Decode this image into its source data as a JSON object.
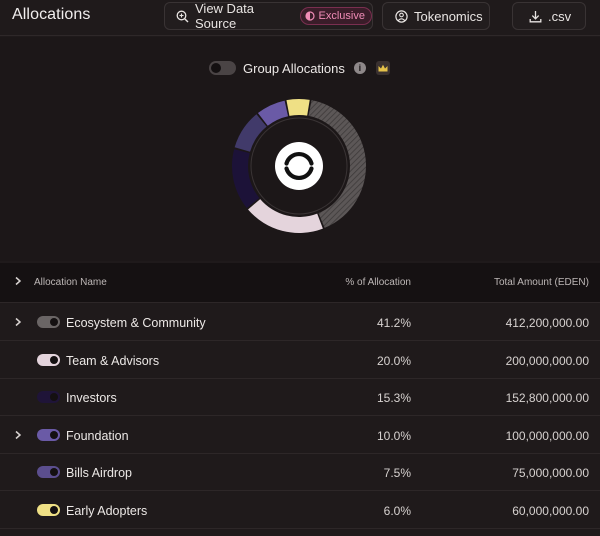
{
  "header": {
    "title": "Allocations",
    "view_source_label": "View Data Source",
    "exclusive_badge": "Exclusive",
    "tokenomics_label": "Tokenomics",
    "csv_label": ".csv"
  },
  "controls": {
    "group_allocations_label": "Group Allocations",
    "group_allocations_on": false,
    "info_icon": "info-icon",
    "crown_icon": "crown-icon"
  },
  "colors": {
    "ecosystem": "#5a5656",
    "team": "#e4d4dc",
    "investors": "#1a0f33",
    "foundation": "#6a5aa6",
    "bills_airdrop": "#5b4e8e",
    "early_adopters": "#efe085"
  },
  "table": {
    "headers": {
      "name": "Allocation Name",
      "pct": "% of Allocation",
      "amount": "Total Amount (EDEN)"
    },
    "rows": [
      {
        "name": "Ecosystem & Community",
        "pct": "41.2%",
        "amount": "412,200,000.00",
        "expandable": true,
        "color": "#6a6565"
      },
      {
        "name": "Team & Advisors",
        "pct": "20.0%",
        "amount": "200,000,000.00",
        "expandable": false,
        "color": "#e4d4dc"
      },
      {
        "name": "Investors",
        "pct": "15.3%",
        "amount": "152,800,000.00",
        "expandable": false,
        "color": "#1f1438"
      },
      {
        "name": "Foundation",
        "pct": "10.0%",
        "amount": "100,000,000.00",
        "expandable": true,
        "color": "#6a5aa6"
      },
      {
        "name": "Bills Airdrop",
        "pct": "7.5%",
        "amount": "75,000,000.00",
        "expandable": false,
        "color": "#5b4e8e"
      },
      {
        "name": "Early Adopters",
        "pct": "6.0%",
        "amount": "60,000,000.00",
        "expandable": false,
        "color": "#efe085"
      }
    ]
  }
}
